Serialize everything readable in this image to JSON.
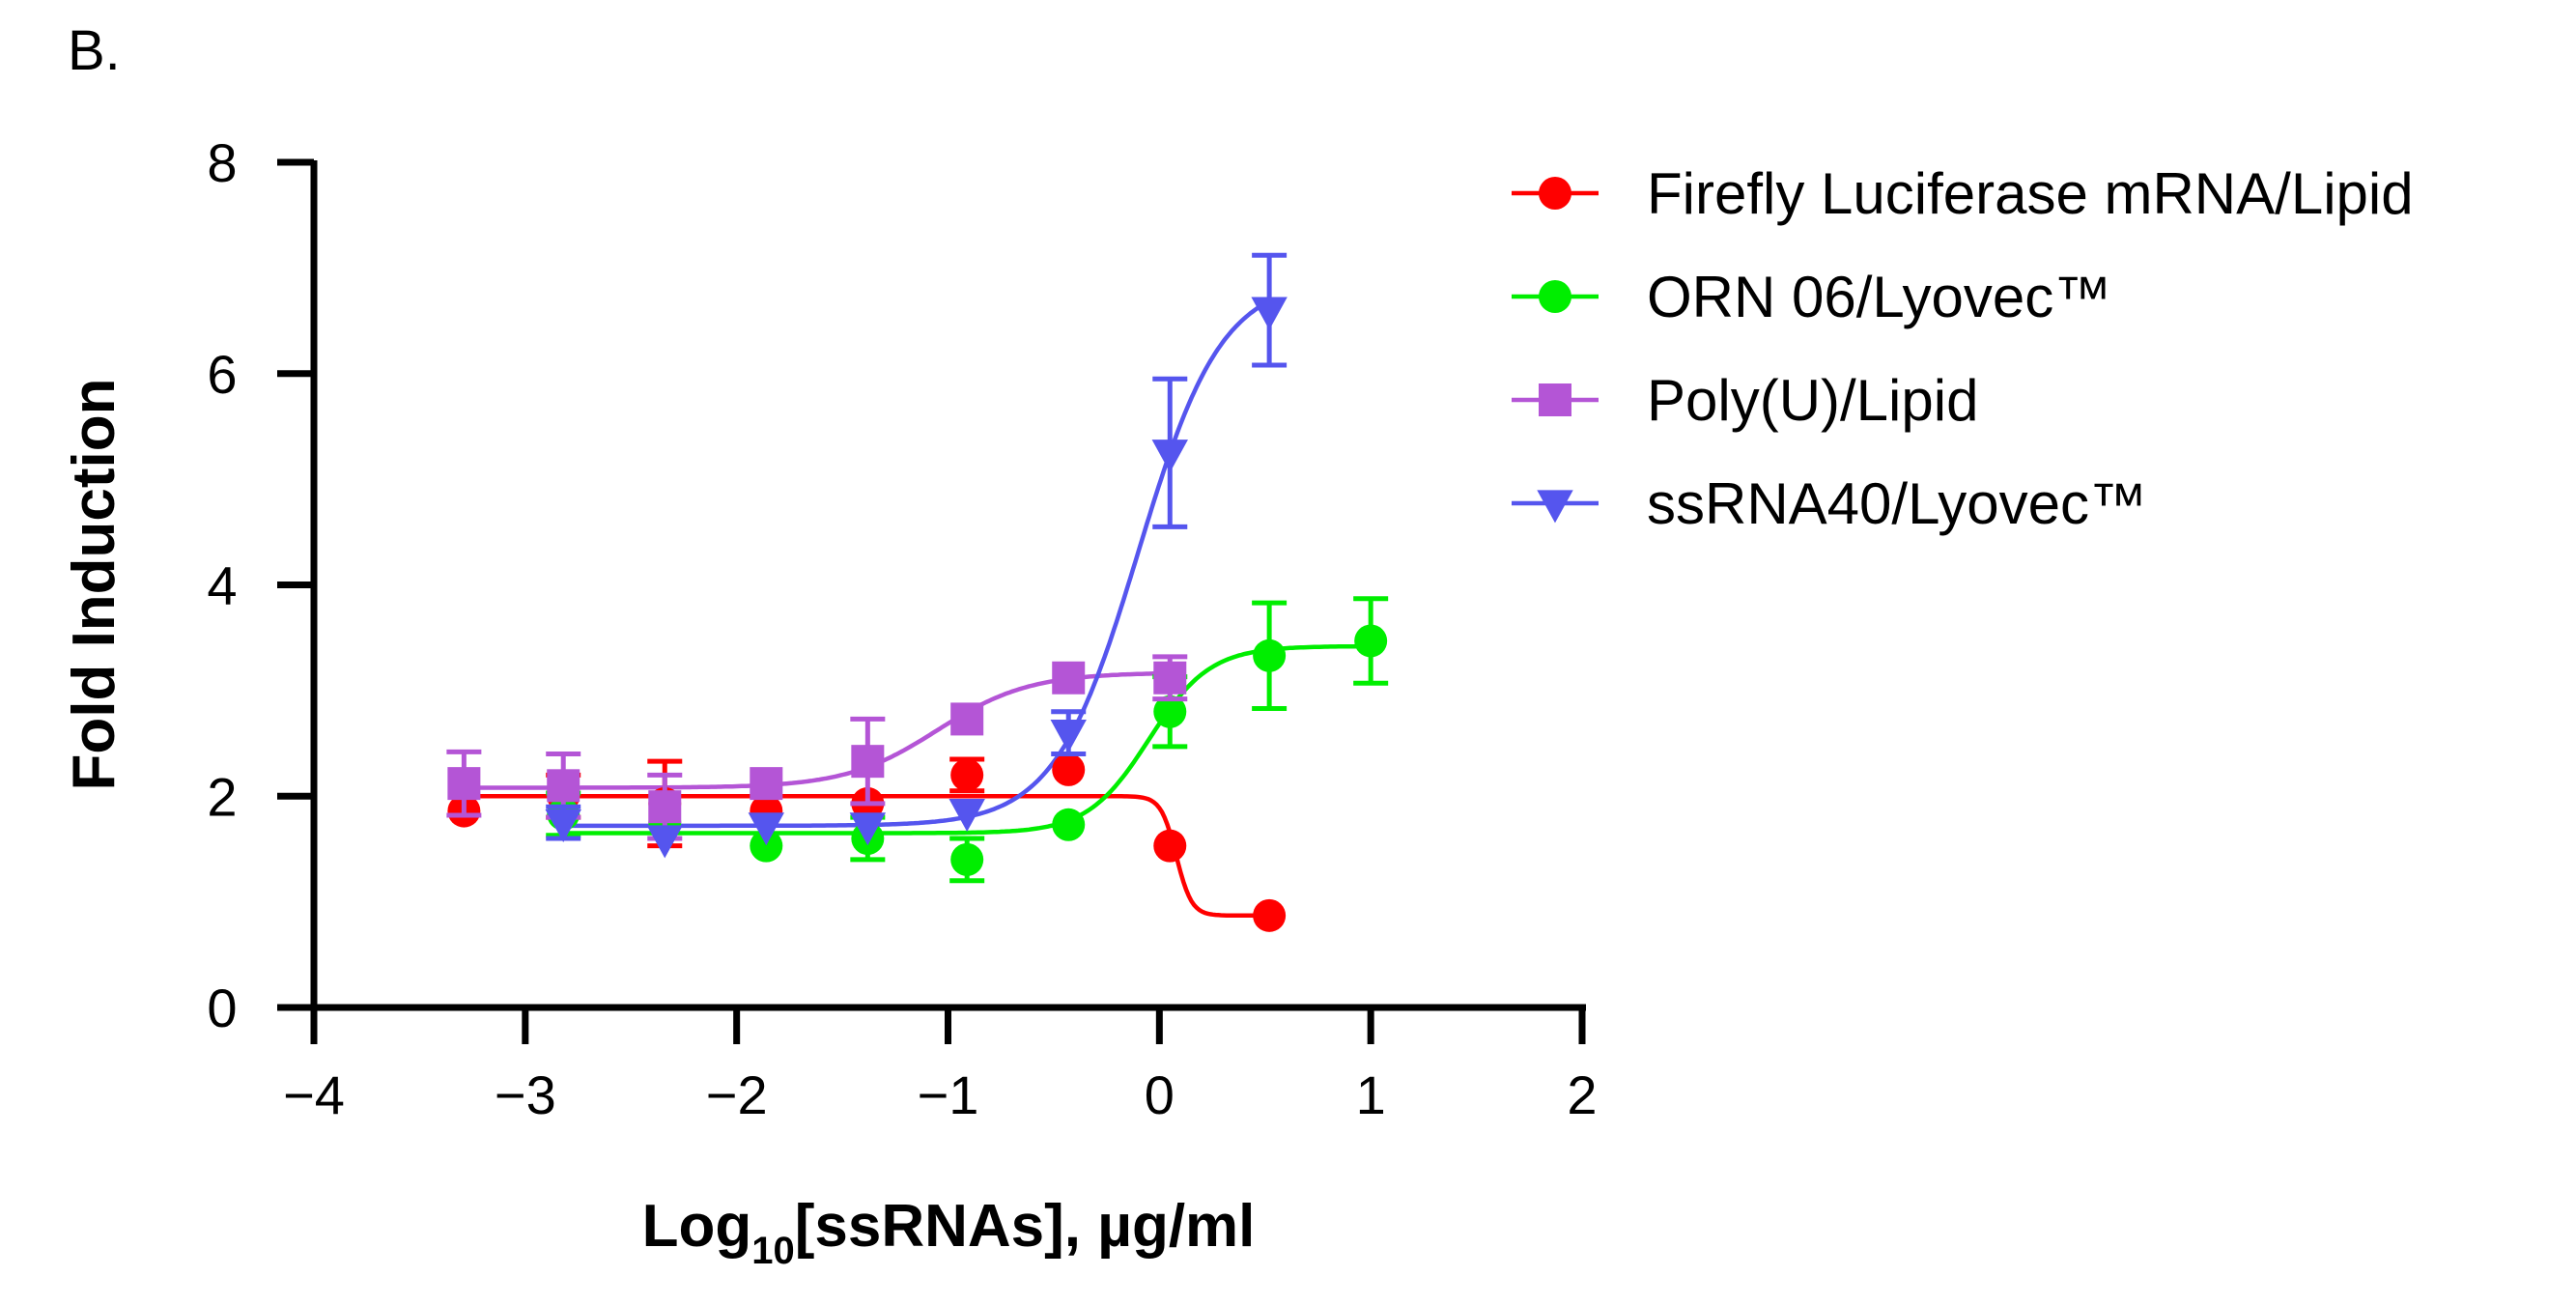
{
  "panel_label": "B.",
  "chart_data": {
    "type": "scatter",
    "title": "",
    "xlabel_main": "Log",
    "xlabel_sub": "10",
    "xlabel_rest": "[ssRNAs], µg/ml",
    "ylabel": "Fold Induction",
    "xlim": [
      -4,
      2
    ],
    "ylim": [
      0,
      8
    ],
    "xticks": [
      -4,
      -3,
      -2,
      -1,
      0,
      1,
      2
    ],
    "yticks": [
      0,
      2,
      4,
      6,
      8
    ],
    "xtick_labels": [
      "−4",
      "−3",
      "−2",
      "−1",
      "0",
      "1",
      "2"
    ],
    "ytick_labels": [
      "0",
      "2",
      "4",
      "6",
      "8"
    ],
    "grid": false,
    "legend_placement": "right",
    "series": [
      {
        "name": "Firefly Luciferase mRNA/Lipid",
        "color": "#ff0000",
        "marker": "circle",
        "x": [
          -3.29,
          -2.82,
          -2.34,
          -1.86,
          -1.38,
          -0.91,
          -0.43,
          0.05,
          0.52
        ],
        "y": [
          1.86,
          2.0,
          1.93,
          1.86,
          1.93,
          2.2,
          2.25,
          1.53,
          0.87
        ],
        "err": [
          0,
          0.2,
          0.4,
          0,
          0,
          0.15,
          0,
          0,
          0
        ],
        "fit": {
          "bottom": 2.0,
          "top": 0.87,
          "logEC50": 0.08,
          "hill": 12
        }
      },
      {
        "name": "ORN 06/Lyovec™",
        "color": "#00ee00",
        "marker": "circle",
        "x": [
          -2.82,
          -2.34,
          -1.86,
          -1.38,
          -0.91,
          -0.43,
          0.05,
          0.52,
          1.0
        ],
        "y": [
          1.83,
          1.75,
          1.53,
          1.6,
          1.4,
          1.73,
          2.8,
          3.33,
          3.47
        ],
        "err": [
          0.2,
          0,
          0,
          0.2,
          0.2,
          0,
          0.33,
          0.5,
          0.4
        ],
        "fit": {
          "bottom": 1.65,
          "top": 3.42,
          "logEC50": -0.05,
          "hill": 3
        }
      },
      {
        "name": "Poly(U)/Lipid",
        "color": "#b455d6",
        "marker": "square",
        "x": [
          -3.29,
          -2.82,
          -2.34,
          -1.86,
          -1.38,
          -0.91,
          -0.43,
          0.05
        ],
        "y": [
          2.12,
          2.1,
          1.9,
          2.12,
          2.33,
          2.73,
          3.12,
          3.12
        ],
        "err": [
          0.3,
          0.3,
          0.3,
          0,
          0.4,
          0,
          0,
          0.2
        ],
        "fit": {
          "bottom": 2.08,
          "top": 3.17,
          "logEC50": -1.05,
          "hill": 2
        }
      },
      {
        "name": "ssRNA40/Lyovec™",
        "color": "#5555ee",
        "marker": "triangle-down",
        "x": [
          -2.82,
          -2.34,
          -1.86,
          -1.38,
          -0.91,
          -0.43,
          0.05,
          0.52
        ],
        "y": [
          1.75,
          1.6,
          1.72,
          1.72,
          1.85,
          2.6,
          5.25,
          6.6
        ],
        "err": [
          0.15,
          0,
          0,
          0,
          0,
          0.2,
          0.7,
          0.52
        ],
        "fit": {
          "bottom": 1.72,
          "top": 6.9,
          "logEC50": -0.1,
          "hill": 2.2
        }
      }
    ]
  }
}
